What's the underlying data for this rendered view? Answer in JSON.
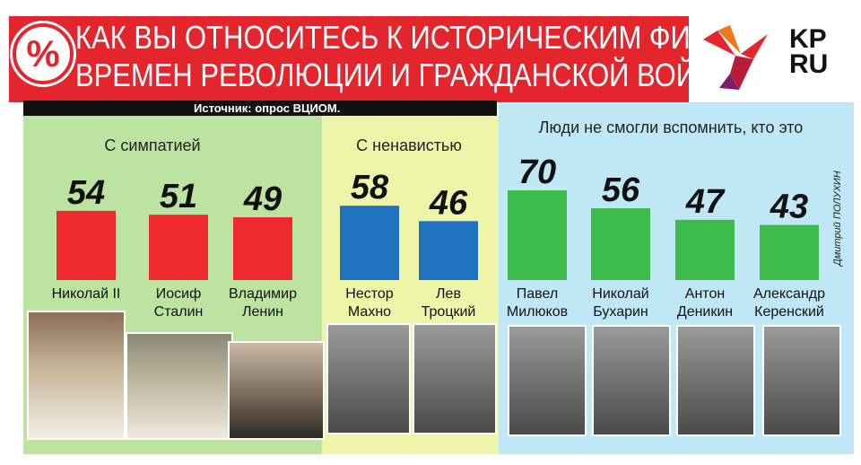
{
  "header": {
    "badge": "%",
    "title_line1": "КАК ВЫ ОТНОСИТЕСЬ К ИСТОРИЧЕСКИМ ФИГУРАМ",
    "title_line2": "ВРЕМЕН РЕВОЛЮЦИИ И ГРАЖДАНСКОЙ ВОЙНЫ?",
    "logo_text_1": "KP",
    "logo_text_2": "RU"
  },
  "source": "Источник: опрос ВЦИОМ.",
  "credit": "Дмитрий ПОЛУХИН",
  "colors": {
    "title_red": "#e3262d",
    "bar_red": "#ee2a2f",
    "bar_blue": "#1f73c0",
    "bar_green": "#3dbb4b",
    "panel_green": "#bde3a0",
    "panel_yellow": "#eef5a8",
    "panel_blue": "#bfe7f6"
  },
  "chart_data": {
    "type": "bar",
    "groups": [
      {
        "name": "С симпатией",
        "color": "#ee2a2f",
        "categories": [
          "Николай II",
          "Иосиф Сталин",
          "Владимир Ленин"
        ],
        "label_lines": [
          [
            "Николай II"
          ],
          [
            "Иосиф",
            "Сталин"
          ],
          [
            "Владимир",
            "Ленин"
          ]
        ],
        "values": [
          54,
          51,
          49
        ]
      },
      {
        "name": "С ненавистью",
        "color": "#1f73c0",
        "categories": [
          "Нестор Махно",
          "Лев Троцкий"
        ],
        "label_lines": [
          [
            "Нестор",
            "Махно"
          ],
          [
            "Лев",
            "Троцкий"
          ]
        ],
        "values": [
          58,
          46
        ]
      },
      {
        "name": "Люди не смогли вспомнить, кто это",
        "color": "#3dbb4b",
        "categories": [
          "Павел Милюков",
          "Николай Бухарин",
          "Антон Деникин",
          "Александр Керенский"
        ],
        "label_lines": [
          [
            "Павел",
            "Милюков"
          ],
          [
            "Николай",
            "Бухарин"
          ],
          [
            "Антон",
            "Деникин"
          ],
          [
            "Александр",
            "Керенский"
          ]
        ],
        "values": [
          70,
          56,
          47,
          43
        ]
      }
    ],
    "unit": "%"
  }
}
